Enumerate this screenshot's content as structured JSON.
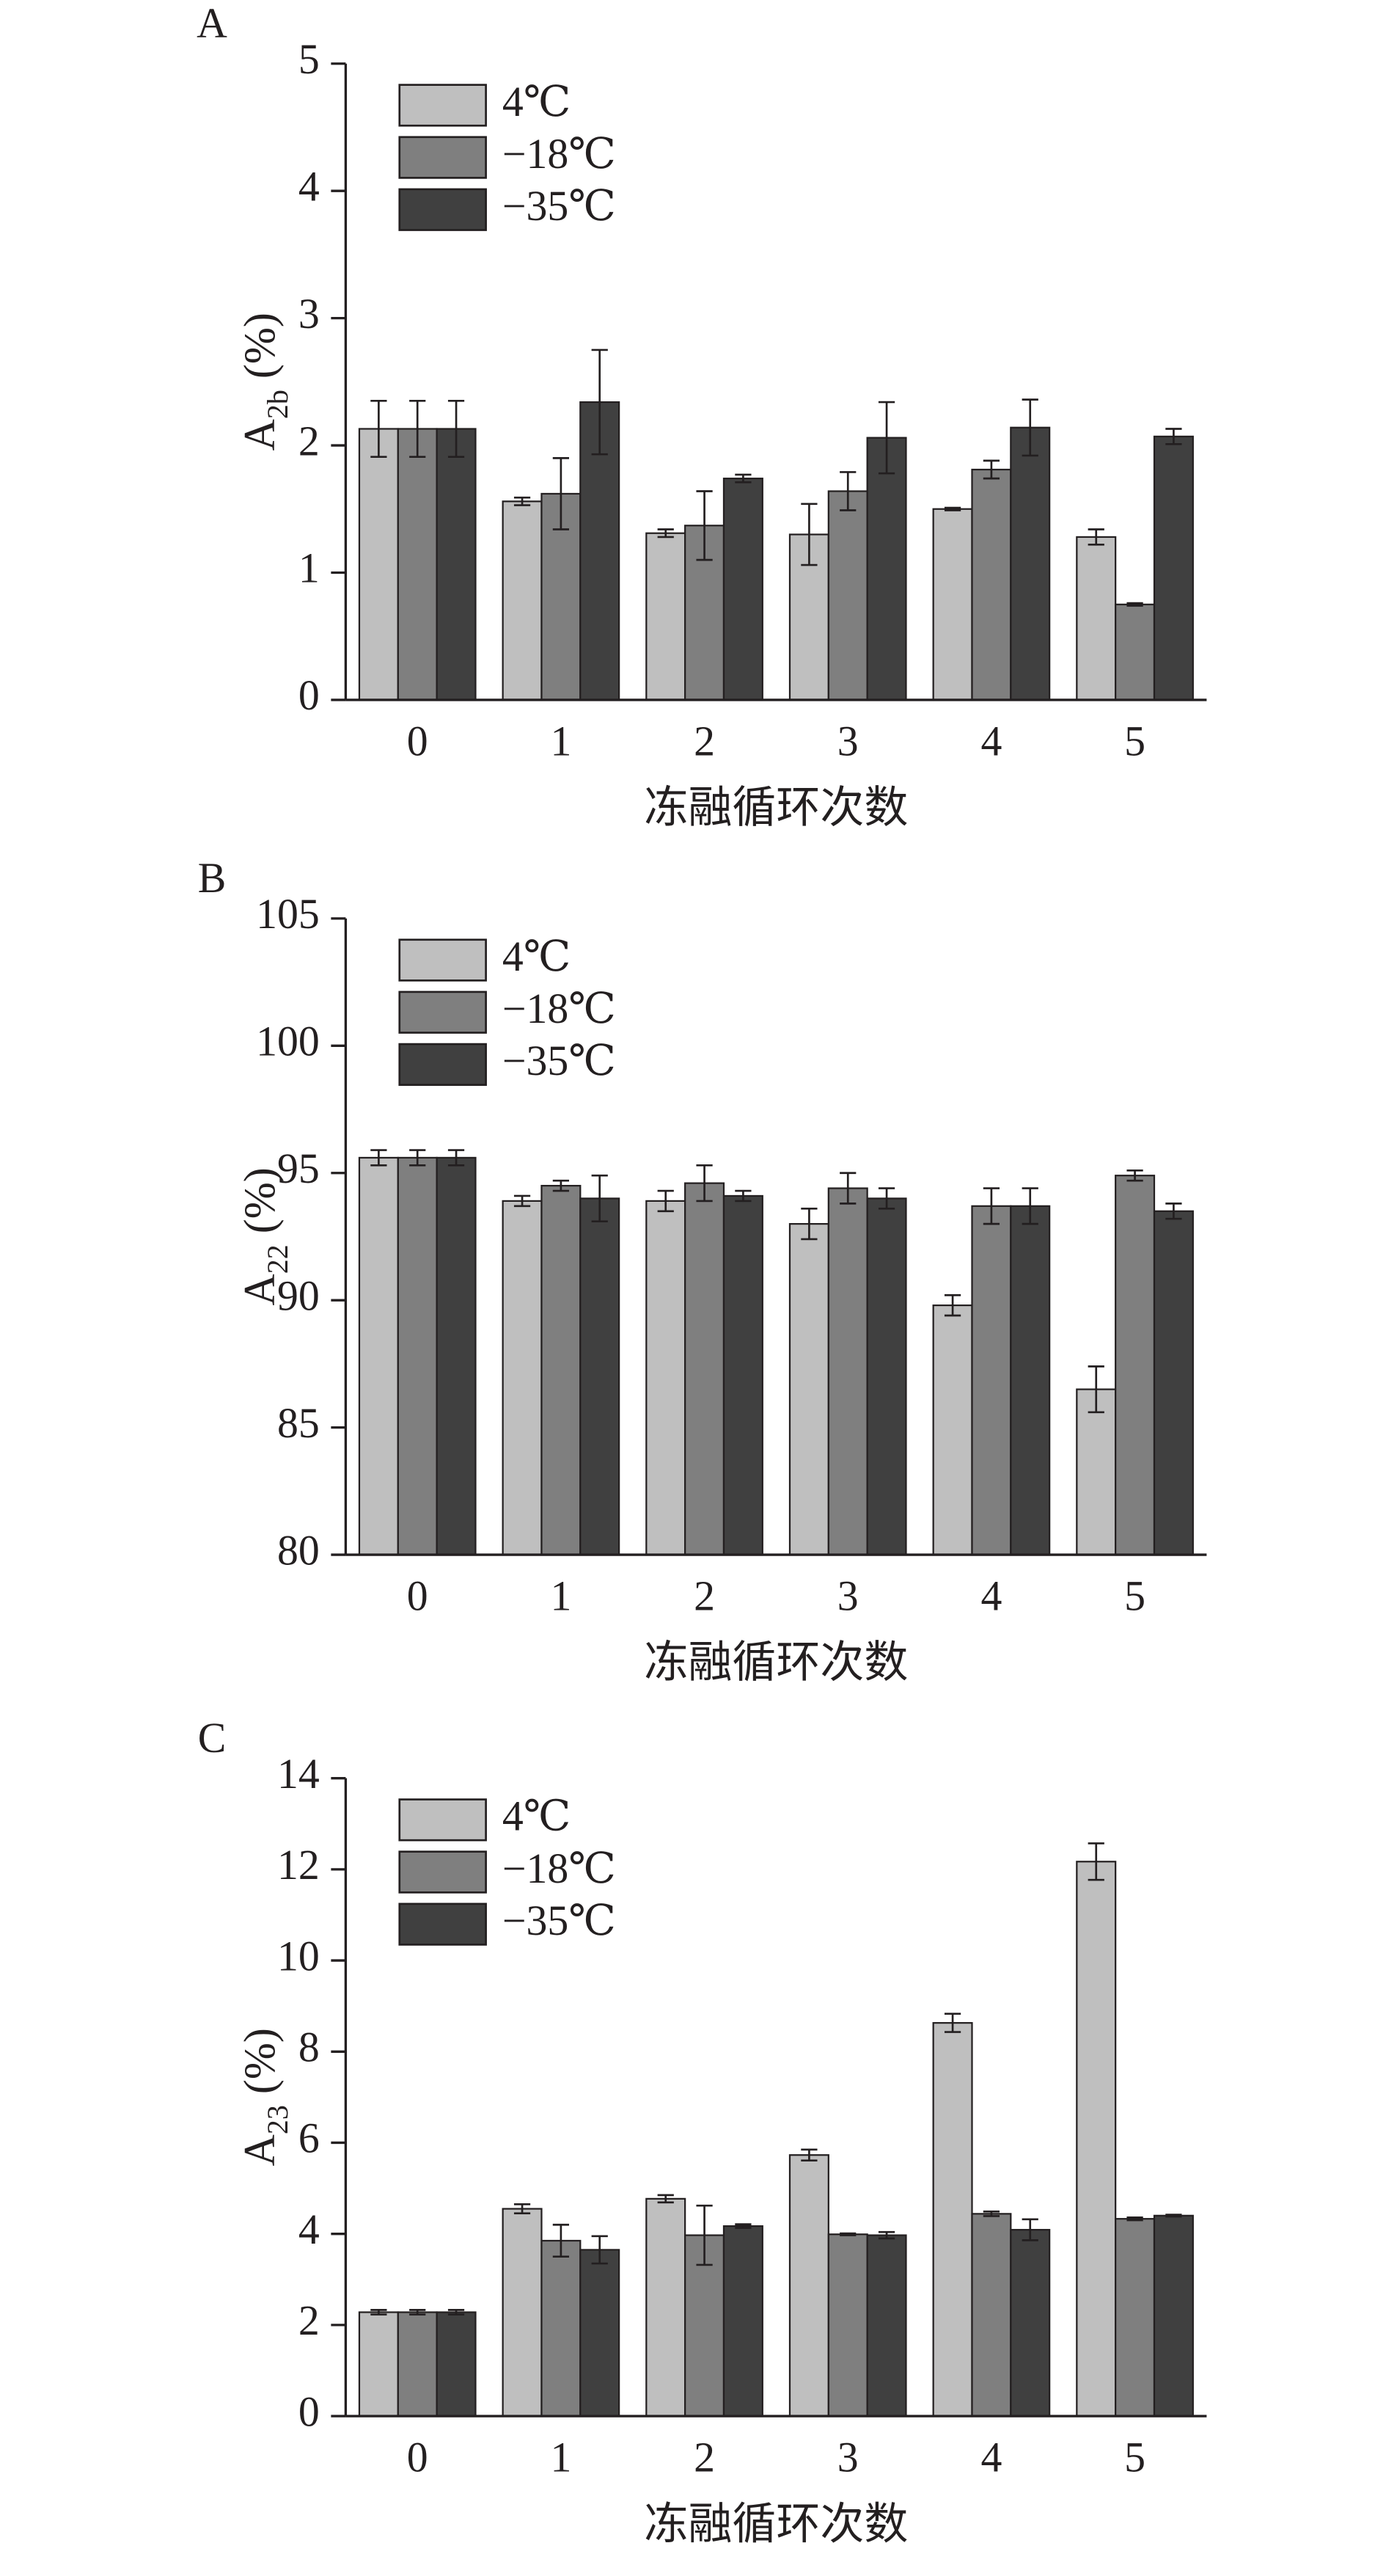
{
  "chart_data": [
    {
      "type": "bar",
      "panel_label": "A",
      "ylabel": [
        "A",
        "2b",
        " (%)"
      ],
      "xlabel": "冻融循环次数",
      "categories": [
        "0",
        "1",
        "2",
        "3",
        "4",
        "5"
      ],
      "ylim": [
        0,
        5
      ],
      "yticks": [
        0,
        1,
        2,
        3,
        4,
        5
      ],
      "series": [
        {
          "name": "4℃",
          "color": "#bfbfbf",
          "values": [
            2.13,
            1.56,
            1.31,
            1.3,
            1.5,
            1.28
          ],
          "errors": [
            0.22,
            0.03,
            0.03,
            0.24,
            0.01,
            0.06
          ]
        },
        {
          "name": "−18℃",
          "color": "#7f7f7f",
          "values": [
            2.13,
            1.62,
            1.37,
            1.64,
            1.81,
            0.75
          ],
          "errors": [
            0.22,
            0.28,
            0.27,
            0.15,
            0.07,
            0.01
          ]
        },
        {
          "name": "−35℃",
          "color": "#404040",
          "values": [
            2.13,
            2.34,
            1.74,
            2.06,
            2.14,
            2.07
          ],
          "errors": [
            0.22,
            0.41,
            0.03,
            0.28,
            0.22,
            0.06
          ]
        }
      ]
    },
    {
      "type": "bar",
      "panel_label": "B",
      "ylabel": [
        "A",
        "22",
        " (%)"
      ],
      "xlabel": "冻融循环次数",
      "categories": [
        "0",
        "1",
        "2",
        "3",
        "4",
        "5"
      ],
      "ylim": [
        80,
        105
      ],
      "yticks": [
        80,
        85,
        90,
        95,
        100,
        105
      ],
      "series": [
        {
          "name": "4℃",
          "color": "#bfbfbf",
          "values": [
            95.6,
            93.9,
            93.9,
            93.0,
            89.8,
            86.5
          ],
          "errors": [
            0.3,
            0.2,
            0.4,
            0.6,
            0.4,
            0.9
          ]
        },
        {
          "name": "−18℃",
          "color": "#7f7f7f",
          "values": [
            95.6,
            94.5,
            94.6,
            94.4,
            93.7,
            94.9
          ],
          "errors": [
            0.3,
            0.2,
            0.7,
            0.6,
            0.7,
            0.2
          ]
        },
        {
          "name": "−35℃",
          "color": "#404040",
          "values": [
            95.6,
            94.0,
            94.1,
            94.0,
            93.7,
            93.5
          ],
          "errors": [
            0.3,
            0.9,
            0.2,
            0.4,
            0.7,
            0.3
          ]
        }
      ]
    },
    {
      "type": "bar",
      "panel_label": "C",
      "ylabel": [
        "A",
        "23",
        " (%)"
      ],
      "xlabel": "冻融循环次数",
      "categories": [
        "0",
        "1",
        "2",
        "3",
        "4",
        "5"
      ],
      "ylim": [
        0,
        14
      ],
      "yticks": [
        0,
        2,
        4,
        6,
        8,
        10,
        12,
        14
      ],
      "series": [
        {
          "name": "4℃",
          "color": "#bfbfbf",
          "values": [
            2.28,
            4.55,
            4.77,
            5.73,
            8.63,
            12.17
          ],
          "errors": [
            0.05,
            0.1,
            0.08,
            0.12,
            0.2,
            0.4
          ]
        },
        {
          "name": "−18℃",
          "color": "#7f7f7f",
          "values": [
            2.28,
            3.85,
            3.97,
            3.99,
            4.44,
            4.33
          ],
          "errors": [
            0.05,
            0.35,
            0.65,
            0.02,
            0.05,
            0.03
          ]
        },
        {
          "name": "−35℃",
          "color": "#404040",
          "values": [
            2.28,
            3.65,
            4.17,
            3.97,
            4.09,
            4.4
          ],
          "errors": [
            0.05,
            0.3,
            0.04,
            0.07,
            0.23,
            0.02
          ]
        }
      ]
    }
  ]
}
